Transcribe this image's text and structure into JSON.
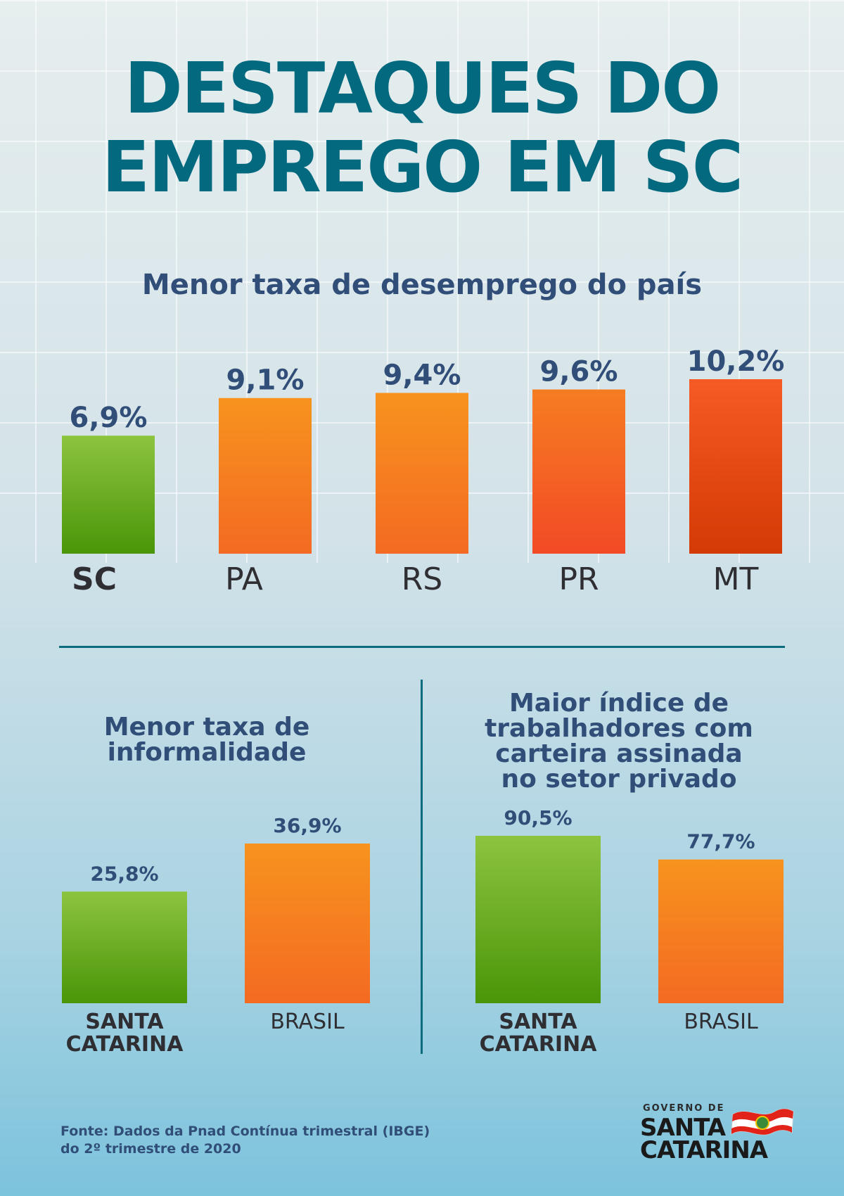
{
  "title": {
    "line1": "DESTAQUES DO",
    "line2": "EMPREGO EM SC"
  },
  "colors": {
    "title": "#03697f",
    "subtitle": "#304e78",
    "highlight_green": "#7aba3a",
    "bar_orange": "#f57c22",
    "bar_red": "#e8471f",
    "divider": "#0a6c7d"
  },
  "chart_data": [
    {
      "type": "bar",
      "title": "Menor taxa de desemprego do país",
      "categories": [
        "SC",
        "PA",
        "RS",
        "PR",
        "MT"
      ],
      "values": [
        6.9,
        9.1,
        9.4,
        9.6,
        10.2
      ],
      "value_labels": [
        "6,9%",
        "9,1%",
        "9,4%",
        "9,6%",
        "10,2%"
      ],
      "highlight": "SC",
      "ylim": [
        0,
        10.2
      ],
      "grid": true
    },
    {
      "type": "bar",
      "title": "Menor taxa de informalidade",
      "categories": [
        "SANTA CATARINA",
        "BRASIL"
      ],
      "values": [
        25.8,
        36.9
      ],
      "value_labels": [
        "25,8%",
        "36,9%"
      ],
      "highlight": "SANTA CATARINA",
      "ylim": [
        0,
        36.9
      ]
    },
    {
      "type": "bar",
      "title": "Maior índice de trabalhadores com carteira assinada no setor privado",
      "categories": [
        "SANTA CATARINA",
        "BRASIL"
      ],
      "values": [
        90.5,
        77.7
      ],
      "value_labels": [
        "90,5%",
        "77,7%"
      ],
      "highlight": "SANTA CATARINA",
      "ylim": [
        0,
        90.5
      ]
    }
  ],
  "panel_titles": {
    "left": [
      "Menor taxa de",
      "informalidade"
    ],
    "right": [
      "Maior índice de",
      "trabalhadores com",
      "carteira assinada",
      "no setor privado"
    ]
  },
  "source": {
    "line1": "Fonte: Dados da Pnad Contínua trimestral (IBGE)",
    "line2": "do 2º trimestre de 2020"
  },
  "logo": {
    "line1": "GOVERNO DE",
    "line2": "SANTA",
    "line3": "CATARINA",
    "flag_icon": "santa-catarina-flag-icon"
  }
}
